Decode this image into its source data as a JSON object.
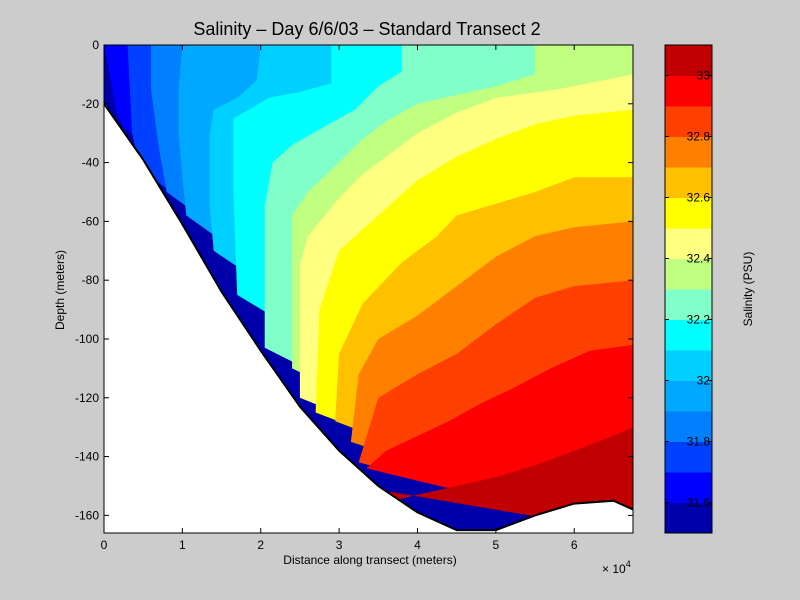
{
  "chart_data": {
    "type": "heatmap",
    "title": "Salinity – Day 6/6/03 – Standard Transect 2",
    "xlabel": "Distance along transect (meters)",
    "ylabel": "Depth (meters)",
    "x_multiplier_label": "× 10",
    "x_multiplier_exp": "4",
    "xlim": [
      0,
      67500
    ],
    "ylim": [
      -166,
      0
    ],
    "x_ticks": [
      0,
      1,
      2,
      3,
      4,
      5,
      6
    ],
    "y_ticks": [
      0,
      -20,
      -40,
      -60,
      -80,
      -100,
      -120,
      -140,
      -160
    ],
    "grid": false,
    "colorbar": {
      "label": "Salinity (PSU)",
      "range": [
        31.5,
        33.1
      ],
      "levels": [
        31.5,
        31.6,
        31.7,
        31.8,
        31.9,
        32.0,
        32.1,
        32.2,
        32.3,
        32.4,
        32.5,
        32.6,
        32.7,
        32.8,
        32.9,
        33.0,
        33.1
      ],
      "colors": [
        "#0000aa",
        "#0000ff",
        "#0040ff",
        "#0080ff",
        "#00a8ff",
        "#00d0ff",
        "#00ffff",
        "#80ffc8",
        "#c0ff80",
        "#ffff80",
        "#ffff00",
        "#ffc000",
        "#ff8000",
        "#ff4000",
        "#ff0000",
        "#c00000"
      ],
      "tick_values": [
        31.6,
        31.8,
        32.0,
        32.2,
        32.4,
        32.6,
        32.8,
        33.0
      ],
      "tick_labels": [
        "31.6",
        "31.8",
        "32",
        "32.2",
        "32.4",
        "32.6",
        "32.8",
        "33"
      ]
    },
    "bottom_profile": {
      "x": [
        0,
        5000,
        10000,
        15000,
        20000,
        25000,
        30000,
        35000,
        40000,
        45000,
        50000,
        55000,
        60000,
        65000,
        67500
      ],
      "depth": [
        -20,
        -39,
        -61,
        -84,
        -104,
        -123,
        -138,
        -150,
        -159,
        -165,
        -165,
        -160,
        -156,
        -155,
        -158
      ]
    },
    "contour_profiles": [
      {
        "level": 31.6,
        "x": [
          0,
          900,
          1500,
          2500
        ],
        "depth": [
          0,
          -12,
          -22,
          -28
        ]
      },
      {
        "level": 31.7,
        "x": [
          3000,
          3200,
          3400,
          3600,
          4000,
          4500
        ],
        "depth": [
          0,
          -10,
          -20,
          -30,
          -35,
          -42
        ]
      },
      {
        "level": 31.8,
        "x": [
          6000,
          6000,
          6500,
          7000,
          8000
        ],
        "depth": [
          0,
          -15,
          -25,
          -35,
          -50
        ]
      },
      {
        "level": 31.9,
        "x": [
          10000,
          9500,
          9500,
          10000,
          10500
        ],
        "depth": [
          0,
          -15,
          -30,
          -45,
          -58
        ]
      },
      {
        "level": 32.0,
        "x": [
          20000,
          19500,
          17000,
          14000,
          13500,
          13500,
          14000
        ],
        "depth": [
          0,
          -12,
          -18,
          -22,
          -30,
          -55,
          -70
        ]
      },
      {
        "level": 32.1,
        "x": [
          29000,
          29000,
          25000,
          21000,
          18500,
          16500,
          16500,
          17000
        ],
        "depth": [
          0,
          -13,
          -16,
          -18,
          -22,
          -25,
          -50,
          -85
        ]
      },
      {
        "level": 32.2,
        "x": [
          38000,
          38000,
          35000,
          32000,
          28000,
          24000,
          21500,
          20500,
          20500
        ],
        "depth": [
          0,
          -9,
          -14,
          -22,
          -28,
          -34,
          -40,
          -55,
          -103
        ]
      },
      {
        "level": 32.3,
        "x": [
          55000,
          55000,
          50000,
          45000,
          40000,
          36000,
          33000,
          30000,
          26000,
          24000,
          24000
        ],
        "depth": [
          0,
          -10,
          -14,
          -17,
          -20,
          -26,
          -32,
          -40,
          -50,
          -58,
          -110
        ]
      },
      {
        "level": 32.4,
        "x": [
          67500,
          58000,
          50000,
          45000,
          40000,
          37000,
          33000,
          30000,
          26000,
          25000,
          25000
        ],
        "depth": [
          -10,
          -15,
          -18,
          -23,
          -30,
          -36,
          -44,
          -52,
          -65,
          -75,
          -120
        ]
      },
      {
        "level": 32.5,
        "x": [
          67500,
          60000,
          55000,
          50000,
          45000,
          40000,
          35000,
          30000,
          27500,
          27000
        ],
        "depth": [
          -22,
          -24,
          -27,
          -32,
          -38,
          -46,
          -58,
          -70,
          -90,
          -125
        ]
      },
      {
        "level": 32.6,
        "x": [
          67500,
          60000,
          55000,
          50000,
          45000,
          42500,
          38000,
          33000,
          30000,
          29500
        ],
        "depth": [
          -45,
          -45,
          -50,
          -54,
          -58,
          -65,
          -74,
          -88,
          -105,
          -128
        ]
      },
      {
        "level": 32.7,
        "x": [
          67500,
          60000,
          55000,
          50000,
          45000,
          40000,
          35000,
          32500,
          31500
        ],
        "depth": [
          -60,
          -62,
          -65,
          -72,
          -82,
          -92,
          -100,
          -112,
          -135
        ]
      },
      {
        "level": 32.8,
        "x": [
          67500,
          60000,
          55000,
          50000,
          45000,
          40000,
          35000,
          32500
        ],
        "depth": [
          -80,
          -82,
          -86,
          -95,
          -105,
          -112,
          -120,
          -142
        ]
      },
      {
        "level": 32.9,
        "x": [
          67500,
          62000,
          57000,
          52000,
          48000,
          44000,
          40000,
          36000,
          33500
        ],
        "depth": [
          -102,
          -104,
          -110,
          -117,
          -122,
          -128,
          -133,
          -138,
          -144
        ]
      },
      {
        "level": 33.0,
        "x": [
          67500,
          64000,
          60000,
          55000,
          50000,
          45000,
          40000,
          37000,
          36500
        ],
        "depth": [
          -130,
          -134,
          -138,
          -143,
          -147,
          -150,
          -153,
          -155,
          -152
        ]
      }
    ]
  }
}
